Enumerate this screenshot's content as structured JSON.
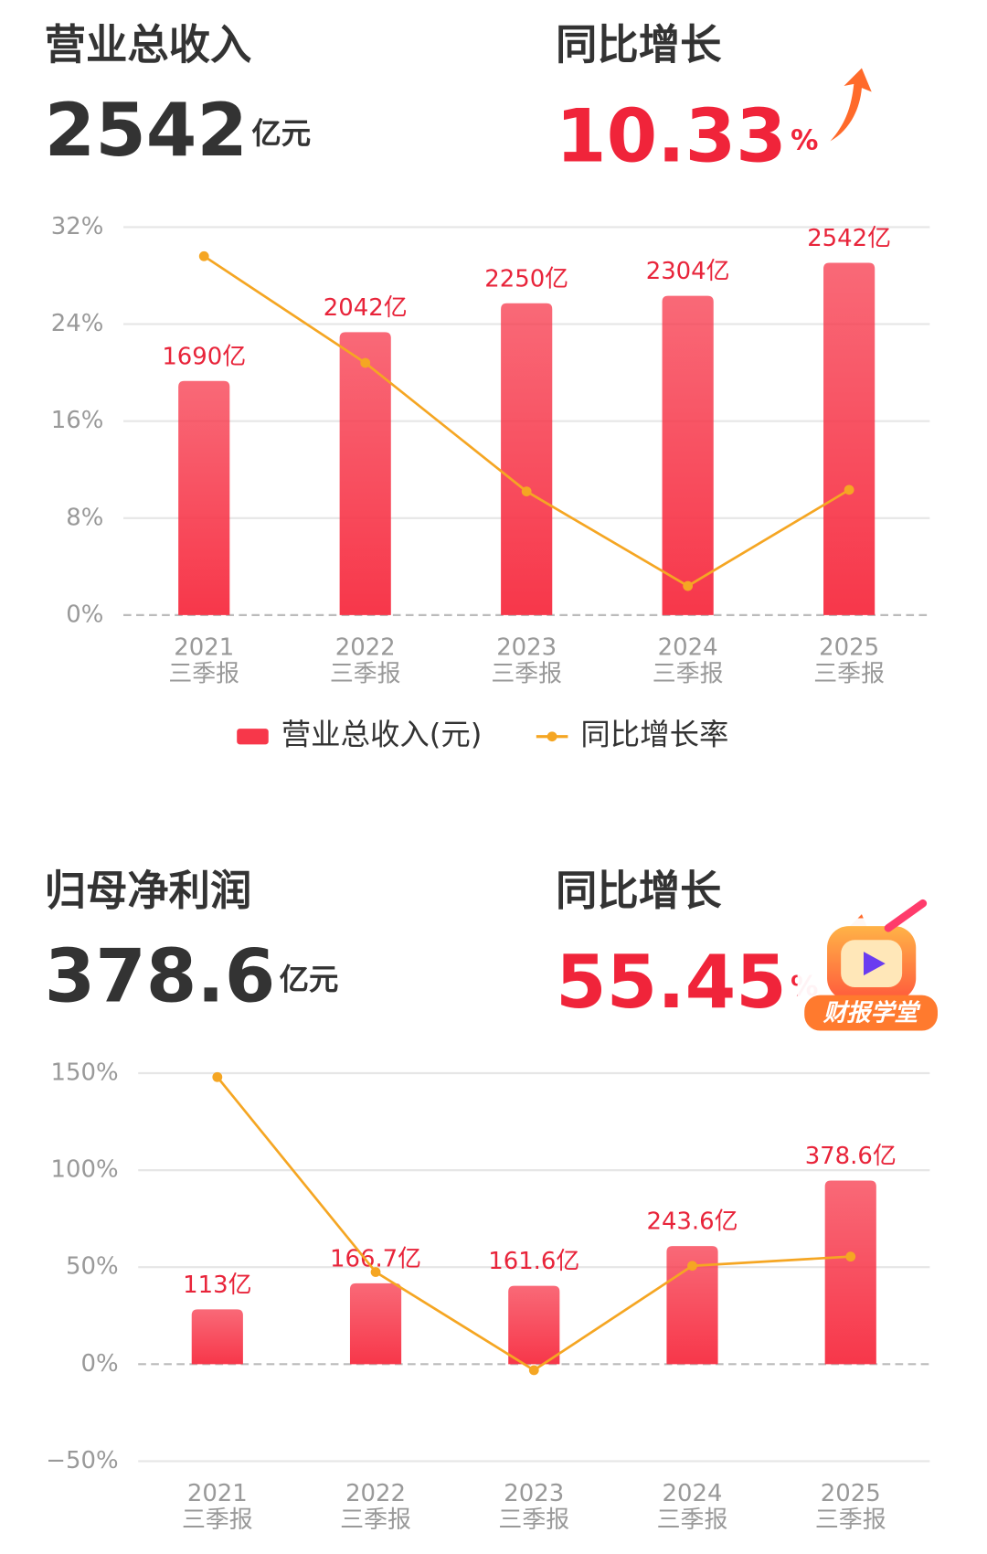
{
  "chart_data": [
    {
      "type": "combo",
      "headline": {
        "title": "营业总收入",
        "value": 2542,
        "unit": "亿元",
        "growth_title": "同比增长",
        "growth_value": 10.33,
        "growth_unit": "%"
      },
      "categories": [
        "2021\n三季报",
        "2022\n三季报",
        "2023\n三季报",
        "2024\n三季报",
        "2025\n三季报"
      ],
      "series": [
        {
          "name": "营业总收入(元)",
          "type": "bar",
          "axis": "y2",
          "color": "#f7374a",
          "values": [
            1690,
            2042,
            2250,
            2304,
            2542
          ],
          "value_labels": [
            "1690亿",
            "2042亿",
            "2250亿",
            "2304亿",
            "2542亿"
          ]
        },
        {
          "name": "同比增长率",
          "type": "line",
          "color": "#f5a623",
          "values": [
            29.6,
            20.8,
            10.2,
            2.4,
            10.33
          ]
        }
      ],
      "ylim": [
        0,
        32
      ],
      "yticks": [
        {
          "value": 0,
          "label": "0%"
        },
        {
          "value": 8,
          "label": "8%"
        },
        {
          "value": 16,
          "label": "16%"
        },
        {
          "value": 24,
          "label": "24%"
        },
        {
          "value": 32,
          "label": "32%"
        }
      ],
      "y2lim": [
        0,
        2800
      ],
      "grid": true,
      "legend": "bottom"
    },
    {
      "type": "combo",
      "headline": {
        "title": "归母净利润",
        "value": 378.6,
        "unit": "亿元",
        "growth_title": "同比增长",
        "growth_value": 55.45,
        "growth_unit": "%"
      },
      "categories": [
        "2021\n三季报",
        "2022\n三季报",
        "2023\n三季报",
        "2024\n三季报",
        "2025\n三季报"
      ],
      "series": [
        {
          "type": "bar",
          "axis": "y2",
          "color": "#f7374a",
          "values": [
            113,
            166.7,
            161.6,
            243.6,
            378.6
          ],
          "value_labels": [
            "113亿",
            "166.7亿",
            "161.6亿",
            "243.6亿",
            "378.6亿"
          ]
        },
        {
          "type": "line",
          "color": "#f5a623",
          "values": [
            148,
            47.5,
            -3.1,
            50.7,
            55.45
          ]
        }
      ],
      "ylim": [
        -50,
        150
      ],
      "yticks": [
        {
          "value": -50,
          "label": "−50%"
        },
        {
          "value": 0,
          "label": "0%"
        },
        {
          "value": 50,
          "label": "50%"
        },
        {
          "value": 100,
          "label": "100%"
        },
        {
          "value": 150,
          "label": "150%"
        }
      ],
      "y2lim": [
        -200,
        600
      ],
      "grid": true
    }
  ],
  "badge": "财报学堂"
}
